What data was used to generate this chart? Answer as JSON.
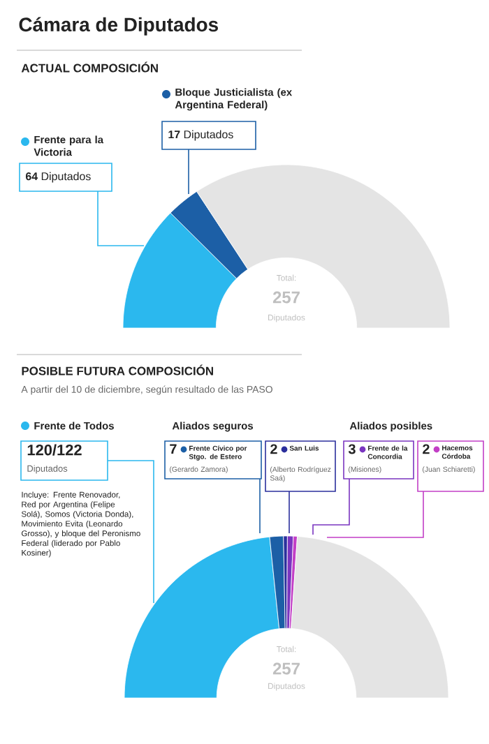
{
  "chart_data": [
    {
      "type": "donut",
      "title": "Cámara de Diputados",
      "subtitle": "ACTUAL COMPOSICIÓN",
      "categories": [
        "Frente para la Victoria",
        "Bloque Justicialista (ex Argentina Federal)",
        null
      ],
      "values": [
        64,
        17,
        176
      ],
      "colors": [
        "#2bb8ee",
        "#1c5fa6",
        "#e4e4e4"
      ],
      "value_labels": [
        "**64** Diputados",
        "**17** Diputados",
        null
      ],
      "annotations": [
        "Total:",
        "257",
        "Diputados"
      ],
      "legend": "top"
    },
    {
      "type": "donut",
      "title": "POSIBLE FUTURA COMPOSICIÓN",
      "subtitle": "A partir del 10 de diciembre, según resultado de las PASO",
      "categories": [
        "Frente de Todos",
        "Frente Cívico por Stgo. de Estero",
        "San Luis",
        "Frente de la Concordia",
        "Hacemos Córdoba",
        null
      ],
      "values": [
        120,
        7,
        2,
        3,
        2,
        123
      ],
      "colors": [
        "#2bb8ee",
        "#1c5fa6",
        "#2b2f9c",
        "#7a35c0",
        "#c23fc6",
        "#e4e4e4"
      ],
      "value_labels": [
        "120/122",
        "7",
        "2",
        "3",
        "2",
        null
      ],
      "annotations": [
        "Diputados",
        "(Gerardo Zamora)",
        "(Alberto Rodríguez Saá)",
        "(Misiones)",
        "(Juan Schiaretti)",
        "Aliados seguros",
        "Aliados posibles",
        "Incluye: Frente Renovador, Red por Argentina (Felipe Solá), Somos (Victoria Donda), Movimiento Evita (Leonardo Grosso), y bloque del Peronismo Federal (liderado por Pablo Kosiner)",
        "Total:",
        "257",
        "Diputados"
      ],
      "legend": "top"
    }
  ]
}
